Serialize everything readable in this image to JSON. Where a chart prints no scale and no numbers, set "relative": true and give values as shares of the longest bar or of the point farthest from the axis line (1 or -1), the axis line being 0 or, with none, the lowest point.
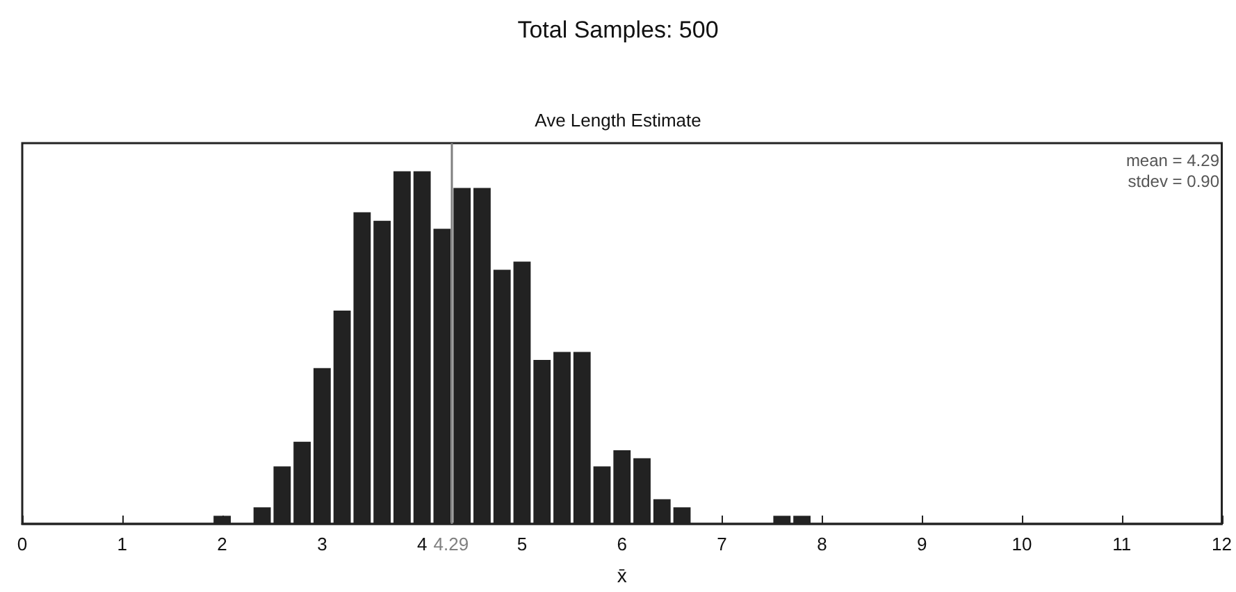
{
  "chart_data": {
    "type": "bar",
    "title": "Total Samples: 500",
    "subtitle": "Ave Length Estimate",
    "xlabel": "x̄",
    "annotations": [
      "mean = 4.29",
      "stdev = 0.90"
    ],
    "x": [
      2.0,
      2.2,
      2.4,
      2.6,
      2.8,
      3.0,
      3.2,
      3.4,
      3.6,
      3.8,
      4.0,
      4.2,
      4.4,
      4.6,
      4.8,
      5.0,
      5.2,
      5.4,
      5.6,
      5.8,
      6.0,
      6.2,
      6.4,
      6.6,
      6.8,
      7.0,
      7.2,
      7.4,
      7.6,
      7.8
    ],
    "values": [
      0.023,
      0,
      0.047,
      0.163,
      0.233,
      0.442,
      0.605,
      0.884,
      0.86,
      1,
      1,
      0.837,
      0.953,
      0.953,
      0.721,
      0.744,
      0.465,
      0.488,
      0.488,
      0.163,
      0.209,
      0.186,
      0.07,
      0.047,
      0,
      0,
      0,
      0,
      0.023,
      0.023
    ],
    "relative": true,
    "color": "#222222",
    "xlim": [
      0,
      12
    ],
    "xticks": [
      0,
      1,
      2,
      3,
      4,
      5,
      6,
      7,
      8,
      9,
      10,
      11,
      12
    ],
    "ref_lines": [
      {
        "axis": "x",
        "value": 4.29,
        "label": "4.29",
        "color": "#808080"
      }
    ],
    "grid": false
  }
}
